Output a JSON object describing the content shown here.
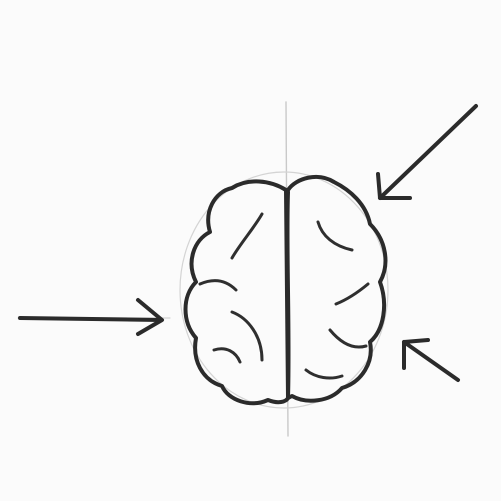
{
  "illustration": {
    "subject": "brain-icon",
    "arrows": [
      "left-arrow-icon",
      "top-right-arrow-icon",
      "bottom-right-arrow-icon"
    ],
    "colors": {
      "background": "#fbfbfb",
      "ink": "#2b2b2b",
      "guide": "#c9c9c9"
    }
  }
}
